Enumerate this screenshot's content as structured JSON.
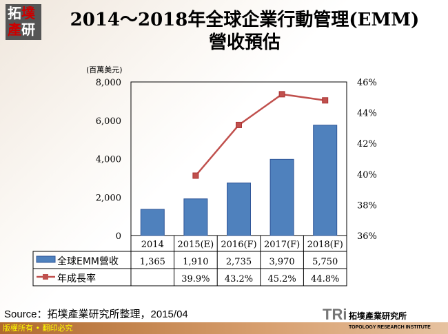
{
  "logo_text": "拓墣產研",
  "title_line1": "2014～2018年全球企業行動管理(EMM)",
  "title_line2": "營收預估",
  "source": "Source：拓墣產業研究所整理，2015/04",
  "footer": "版權所有 • 翻印必究",
  "brand": {
    "mark": "TRi",
    "name": "拓墣產業研究所",
    "sub": "TOPOLOGY RESEARCH INSTITUTE"
  },
  "chart_data": {
    "type": "bar+line",
    "y_unit_label": "(百萬美元)",
    "categories": [
      "2014",
      "2015(E)",
      "2016(F)",
      "2017(F)",
      "2018(F)"
    ],
    "left_axis": {
      "range": [
        0,
        8000
      ],
      "ticks": [
        "0",
        "2,000",
        "4,000",
        "6,000",
        "8,000"
      ]
    },
    "right_axis": {
      "range": [
        36,
        46
      ],
      "ticks": [
        "36%",
        "38%",
        "40%",
        "42%",
        "44%",
        "46%"
      ]
    },
    "series": [
      {
        "name": "全球EMM營收",
        "type": "bar",
        "axis": "left",
        "color": "#4f81bd",
        "values": [
          1365,
          1910,
          2735,
          3970,
          5750
        ],
        "labels": [
          "1,365",
          "1,910",
          "2,735",
          "3,970",
          "5,750"
        ]
      },
      {
        "name": "年成長率",
        "type": "line",
        "axis": "right",
        "color": "#c0504d",
        "values": [
          null,
          39.9,
          43.2,
          45.2,
          44.8
        ],
        "labels": [
          "",
          "39.9%",
          "43.2%",
          "45.2%",
          "44.8%"
        ]
      }
    ],
    "grid": false,
    "legend": "data-table"
  }
}
